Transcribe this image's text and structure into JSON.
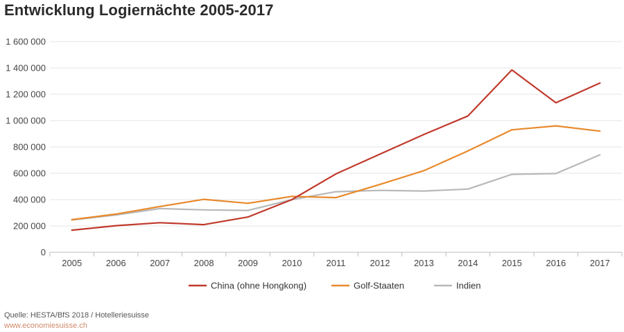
{
  "title": "Entwicklung Logiernächte 2005-2017",
  "source": "Quelle: HESTA/BfS 2018 / Hotelleriesuisse",
  "url": "www.economiesuisse.ch",
  "chart_data": {
    "type": "line",
    "title": "Entwicklung Logiernächte 2005-2017",
    "xlabel": "",
    "ylabel": "",
    "categories": [
      "2005",
      "2006",
      "2007",
      "2008",
      "2009",
      "2010",
      "2011",
      "2012",
      "2013",
      "2014",
      "2015",
      "2016",
      "2017"
    ],
    "ylim": [
      0,
      1600000
    ],
    "yticks": [
      0,
      200000,
      400000,
      600000,
      800000,
      1000000,
      1200000,
      1400000,
      1600000
    ],
    "ytick_labels": [
      "0",
      "200 000",
      "400 000",
      "600 000",
      "800 000",
      "1 000 000",
      "1 200 000",
      "1 400 000",
      "1 600 000"
    ],
    "grid": true,
    "legend": "bottom",
    "series": [
      {
        "name": "China (ohne Hongkong)",
        "color": "#c0392b",
        "values": [
          168000,
          202000,
          225000,
          210000,
          268000,
          400000,
          595000,
          745000,
          895000,
          1035000,
          1385000,
          1135000,
          1285000
        ]
      },
      {
        "name": "Golf-Staaten",
        "color": "#e8892b",
        "values": [
          248000,
          290000,
          348000,
          402000,
          372000,
          425000,
          415000,
          515000,
          620000,
          770000,
          930000,
          960000,
          920000
        ]
      },
      {
        "name": "Indien",
        "color": "#b8b8b8",
        "values": [
          245000,
          283000,
          332000,
          322000,
          318000,
          400000,
          460000,
          470000,
          465000,
          480000,
          592000,
          598000,
          740000
        ]
      }
    ]
  }
}
